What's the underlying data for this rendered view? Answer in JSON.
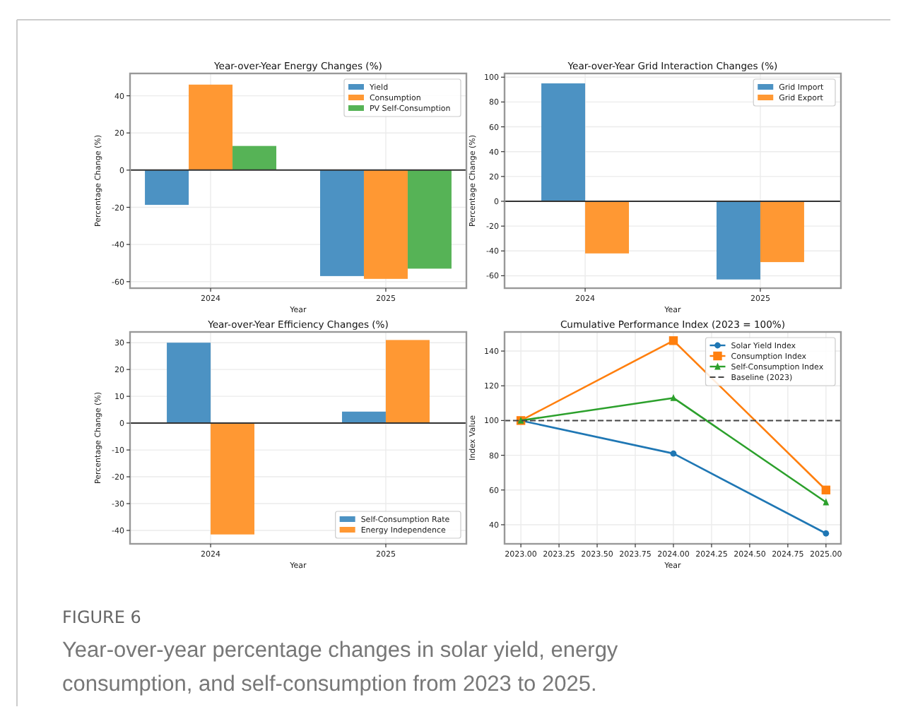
{
  "chart_data": [
    {
      "type": "bar",
      "title": "Year-over-Year Energy Changes (%)",
      "xlabel": "Year",
      "ylabel": "Percentage Change (%)",
      "categories": [
        "2024",
        "2025"
      ],
      "series": [
        {
          "name": "Yield",
          "color": "#4c92c3",
          "values": [
            -18.7,
            -57
          ]
        },
        {
          "name": "Consumption",
          "color": "#ff9833",
          "values": [
            46,
            -58.5
          ]
        },
        {
          "name": "PV Self-Consumption",
          "color": "#56b356",
          "values": [
            13,
            -53
          ]
        }
      ],
      "ylim": [
        -63.5,
        52
      ],
      "yticks": [
        -60,
        -40,
        -20,
        0,
        20,
        40
      ],
      "grid": true,
      "legend": "top right",
      "ref_lines": [
        {
          "axis": "y",
          "value": 0,
          "color": "#333333"
        }
      ]
    },
    {
      "type": "bar",
      "title": "Year-over-Year Grid Interaction Changes (%)",
      "xlabel": "Year",
      "ylabel": "Percentage Change (%)",
      "categories": [
        "2024",
        "2025"
      ],
      "series": [
        {
          "name": "Grid Import",
          "color": "#4c92c3",
          "values": [
            95,
            -63
          ]
        },
        {
          "name": "Grid Export",
          "color": "#ff9833",
          "values": [
            -42,
            -49
          ]
        }
      ],
      "ylim": [
        -70,
        103
      ],
      "yticks": [
        -60,
        -40,
        -20,
        0,
        20,
        40,
        60,
        80,
        100
      ],
      "grid": true,
      "legend": "top right",
      "ref_lines": [
        {
          "axis": "y",
          "value": 0,
          "color": "#333333"
        }
      ]
    },
    {
      "type": "bar",
      "title": "Year-over-Year Efficiency Changes (%)",
      "xlabel": "Year",
      "ylabel": "Percentage Change (%)",
      "categories": [
        "2024",
        "2025"
      ],
      "series": [
        {
          "name": "Self-Consumption Rate",
          "color": "#4c92c3",
          "values": [
            30,
            4.3
          ]
        },
        {
          "name": "Energy Independence",
          "color": "#ff9833",
          "values": [
            -41.5,
            31
          ]
        }
      ],
      "ylim": [
        -45,
        34
      ],
      "yticks": [
        -40,
        -30,
        -20,
        -10,
        0,
        10,
        20,
        30
      ],
      "grid": true,
      "legend": "bottom right",
      "ref_lines": [
        {
          "axis": "y",
          "value": 0,
          "color": "#333333"
        }
      ]
    },
    {
      "type": "line",
      "title": "Cumulative Performance Index (2023 = 100%)",
      "xlabel": "Year",
      "ylabel": "Index Value",
      "x": [
        2023,
        2024,
        2025
      ],
      "series": [
        {
          "name": "Solar Yield Index",
          "color": "#1f77b4",
          "marker": "circle",
          "values": [
            100,
            81,
            35
          ]
        },
        {
          "name": "Consumption Index",
          "color": "#ff7f0e",
          "marker": "square",
          "values": [
            100,
            146,
            60
          ]
        },
        {
          "name": "Self-Consumption Index",
          "color": "#2ca02c",
          "marker": "triangle",
          "values": [
            100,
            113,
            53
          ]
        }
      ],
      "xlim": [
        2022.893,
        2025.098
      ],
      "xticks": [
        {
          "value": 2023,
          "label": "2023.00"
        },
        {
          "value": 2023.25,
          "label": "2023.25"
        },
        {
          "value": 2023.5,
          "label": "2023.50"
        },
        {
          "value": 2023.75,
          "label": "2023.75"
        },
        {
          "value": 2024,
          "label": "2024.00"
        },
        {
          "value": 2024.25,
          "label": "2024.25"
        },
        {
          "value": 2024.5,
          "label": "2024.50"
        },
        {
          "value": 2024.75,
          "label": "2024.75"
        },
        {
          "value": 2025,
          "label": "2025.00"
        }
      ],
      "ylim": [
        29,
        151
      ],
      "yticks": [
        40,
        60,
        80,
        100,
        120,
        140
      ],
      "grid": true,
      "legend": "top right",
      "ref_lines": [
        {
          "axis": "y",
          "value": 100,
          "label": "Baseline (2023)",
          "color": "#444444",
          "line_style": "dashed"
        }
      ],
      "annotations": [
        "FIGURE 6",
        "Year-over-year percentage changes in solar yield, energy consumption, and self-consumption from 2023 to 2025."
      ]
    }
  ]
}
